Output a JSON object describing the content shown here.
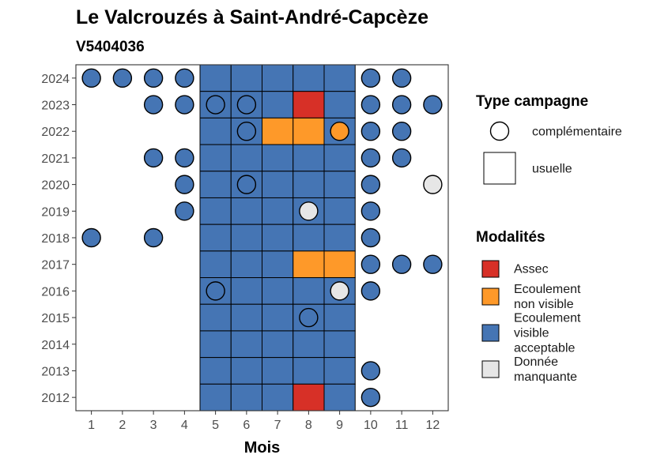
{
  "chart_data": {
    "type": "heatmap",
    "title": "Le Valcrouzés à Saint-André-Capcèze",
    "subtitle": "V5404036",
    "xlabel": "Mois",
    "ylabel": "",
    "x_ticks": [
      "1",
      "2",
      "3",
      "4",
      "5",
      "6",
      "7",
      "8",
      "9",
      "10",
      "11",
      "12"
    ],
    "y_ticks": [
      "2012",
      "2013",
      "2014",
      "2015",
      "2016",
      "2017",
      "2018",
      "2019",
      "2020",
      "2021",
      "2022",
      "2023",
      "2024"
    ],
    "xlim": [
      0.5,
      12.5
    ],
    "ylim": [
      2011.5,
      2024.5
    ],
    "grid": false,
    "legend_position": "right",
    "colors": {
      "Assec": "#d73027",
      "Ecoulement non visible": "#fe9929",
      "Ecoulement visible acceptable": "#4575b4",
      "Donnée manquante": "#e6e6e6"
    },
    "legends": {
      "campaign": {
        "title": "Type campagne",
        "items": [
          {
            "label": "complémentaire",
            "shape": "circle"
          },
          {
            "label": "usuelle",
            "shape": "square"
          }
        ]
      },
      "modality": {
        "title": "Modalités",
        "items": [
          {
            "key": "Assec",
            "lines": [
              "Assec"
            ]
          },
          {
            "key": "Ecoulement non visible",
            "lines": [
              "Ecoulement",
              "non visible"
            ]
          },
          {
            "key": "Ecoulement visible acceptable",
            "lines": [
              "Ecoulement",
              "visible",
              "acceptable"
            ]
          },
          {
            "key": "Donnée manquante",
            "lines": [
              "Donnée",
              "manquante"
            ]
          }
        ]
      }
    },
    "usuelle": [
      {
        "year": 2024,
        "months": [
          5,
          6,
          7,
          8,
          9
        ],
        "values": [
          "Ecoulement visible acceptable",
          "Ecoulement visible acceptable",
          "Ecoulement visible acceptable",
          "Ecoulement visible acceptable",
          "Ecoulement visible acceptable"
        ]
      },
      {
        "year": 2023,
        "months": [
          5,
          6,
          7,
          8,
          9
        ],
        "values": [
          "Ecoulement visible acceptable",
          "Ecoulement visible acceptable",
          "Ecoulement visible acceptable",
          "Assec",
          "Ecoulement visible acceptable"
        ]
      },
      {
        "year": 2022,
        "months": [
          5,
          6,
          7,
          8,
          9
        ],
        "values": [
          "Ecoulement visible acceptable",
          "Ecoulement visible acceptable",
          "Ecoulement non visible",
          "Ecoulement non visible",
          "Ecoulement visible acceptable"
        ]
      },
      {
        "year": 2021,
        "months": [
          5,
          6,
          7,
          8,
          9
        ],
        "values": [
          "Ecoulement visible acceptable",
          "Ecoulement visible acceptable",
          "Ecoulement visible acceptable",
          "Ecoulement visible acceptable",
          "Ecoulement visible acceptable"
        ]
      },
      {
        "year": 2020,
        "months": [
          5,
          6,
          7,
          8,
          9
        ],
        "values": [
          "Ecoulement visible acceptable",
          "Ecoulement visible acceptable",
          "Ecoulement visible acceptable",
          "Ecoulement visible acceptable",
          "Ecoulement visible acceptable"
        ]
      },
      {
        "year": 2019,
        "months": [
          5,
          6,
          7,
          8,
          9
        ],
        "values": [
          "Ecoulement visible acceptable",
          "Ecoulement visible acceptable",
          "Ecoulement visible acceptable",
          "Ecoulement visible acceptable",
          "Ecoulement visible acceptable"
        ]
      },
      {
        "year": 2018,
        "months": [
          5,
          6,
          7,
          8,
          9
        ],
        "values": [
          "Ecoulement visible acceptable",
          "Ecoulement visible acceptable",
          "Ecoulement visible acceptable",
          "Ecoulement visible acceptable",
          "Ecoulement visible acceptable"
        ]
      },
      {
        "year": 2017,
        "months": [
          5,
          6,
          7,
          8,
          9
        ],
        "values": [
          "Ecoulement visible acceptable",
          "Ecoulement visible acceptable",
          "Ecoulement visible acceptable",
          "Ecoulement non visible",
          "Ecoulement non visible"
        ]
      },
      {
        "year": 2016,
        "months": [
          5,
          6,
          7,
          8,
          9
        ],
        "values": [
          "Ecoulement visible acceptable",
          "Ecoulement visible acceptable",
          "Ecoulement visible acceptable",
          "Ecoulement visible acceptable",
          "Ecoulement visible acceptable"
        ]
      },
      {
        "year": 2015,
        "months": [
          5,
          6,
          7,
          8,
          9
        ],
        "values": [
          "Ecoulement visible acceptable",
          "Ecoulement visible acceptable",
          "Ecoulement visible acceptable",
          "Ecoulement visible acceptable",
          "Ecoulement visible acceptable"
        ]
      },
      {
        "year": 2014,
        "months": [
          5,
          6,
          7,
          8,
          9
        ],
        "values": [
          "Ecoulement visible acceptable",
          "Ecoulement visible acceptable",
          "Ecoulement visible acceptable",
          "Ecoulement visible acceptable",
          "Ecoulement visible acceptable"
        ]
      },
      {
        "year": 2013,
        "months": [
          5,
          6,
          7,
          8,
          9
        ],
        "values": [
          "Ecoulement visible acceptable",
          "Ecoulement visible acceptable",
          "Ecoulement visible acceptable",
          "Ecoulement visible acceptable",
          "Ecoulement visible acceptable"
        ]
      },
      {
        "year": 2012,
        "months": [
          5,
          6,
          7,
          8,
          9
        ],
        "values": [
          "Ecoulement visible acceptable",
          "Ecoulement visible acceptable",
          "Ecoulement visible acceptable",
          "Assec",
          "Ecoulement visible acceptable"
        ]
      }
    ],
    "complementaire": [
      {
        "year": 2024,
        "month": 1,
        "value": "Ecoulement visible acceptable"
      },
      {
        "year": 2024,
        "month": 2,
        "value": "Ecoulement visible acceptable"
      },
      {
        "year": 2024,
        "month": 3,
        "value": "Ecoulement visible acceptable"
      },
      {
        "year": 2024,
        "month": 4,
        "value": "Ecoulement visible acceptable"
      },
      {
        "year": 2024,
        "month": 10,
        "value": "Ecoulement visible acceptable"
      },
      {
        "year": 2024,
        "month": 11,
        "value": "Ecoulement visible acceptable"
      },
      {
        "year": 2023,
        "month": 3,
        "value": "Ecoulement visible acceptable"
      },
      {
        "year": 2023,
        "month": 4,
        "value": "Ecoulement visible acceptable"
      },
      {
        "year": 2023,
        "month": 5,
        "value": "Ecoulement visible acceptable"
      },
      {
        "year": 2023,
        "month": 6,
        "value": "Ecoulement visible acceptable"
      },
      {
        "year": 2023,
        "month": 10,
        "value": "Ecoulement visible acceptable"
      },
      {
        "year": 2023,
        "month": 11,
        "value": "Ecoulement visible acceptable"
      },
      {
        "year": 2023,
        "month": 12,
        "value": "Ecoulement visible acceptable"
      },
      {
        "year": 2022,
        "month": 6,
        "value": "Ecoulement visible acceptable"
      },
      {
        "year": 2022,
        "month": 9,
        "value": "Ecoulement non visible"
      },
      {
        "year": 2022,
        "month": 10,
        "value": "Ecoulement visible acceptable"
      },
      {
        "year": 2022,
        "month": 11,
        "value": "Ecoulement visible acceptable"
      },
      {
        "year": 2021,
        "month": 3,
        "value": "Ecoulement visible acceptable"
      },
      {
        "year": 2021,
        "month": 4,
        "value": "Ecoulement visible acceptable"
      },
      {
        "year": 2021,
        "month": 10,
        "value": "Ecoulement visible acceptable"
      },
      {
        "year": 2021,
        "month": 11,
        "value": "Ecoulement visible acceptable"
      },
      {
        "year": 2020,
        "month": 4,
        "value": "Ecoulement visible acceptable"
      },
      {
        "year": 2020,
        "month": 6,
        "value": "Ecoulement visible acceptable"
      },
      {
        "year": 2020,
        "month": 10,
        "value": "Ecoulement visible acceptable"
      },
      {
        "year": 2020,
        "month": 12,
        "value": "Donnée manquante"
      },
      {
        "year": 2019,
        "month": 4,
        "value": "Ecoulement visible acceptable"
      },
      {
        "year": 2019,
        "month": 8,
        "value": "Donnée manquante"
      },
      {
        "year": 2019,
        "month": 10,
        "value": "Ecoulement visible acceptable"
      },
      {
        "year": 2018,
        "month": 1,
        "value": "Ecoulement visible acceptable"
      },
      {
        "year": 2018,
        "month": 3,
        "value": "Ecoulement visible acceptable"
      },
      {
        "year": 2018,
        "month": 10,
        "value": "Ecoulement visible acceptable"
      },
      {
        "year": 2017,
        "month": 10,
        "value": "Ecoulement visible acceptable"
      },
      {
        "year": 2017,
        "month": 11,
        "value": "Ecoulement visible acceptable"
      },
      {
        "year": 2017,
        "month": 12,
        "value": "Ecoulement visible acceptable"
      },
      {
        "year": 2016,
        "month": 5,
        "value": "Ecoulement visible acceptable"
      },
      {
        "year": 2016,
        "month": 9,
        "value": "Donnée manquante"
      },
      {
        "year": 2016,
        "month": 10,
        "value": "Ecoulement visible acceptable"
      },
      {
        "year": 2015,
        "month": 8,
        "value": "Ecoulement visible acceptable"
      },
      {
        "year": 2013,
        "month": 10,
        "value": "Ecoulement visible acceptable"
      },
      {
        "year": 2012,
        "month": 10,
        "value": "Ecoulement visible acceptable"
      }
    ]
  }
}
